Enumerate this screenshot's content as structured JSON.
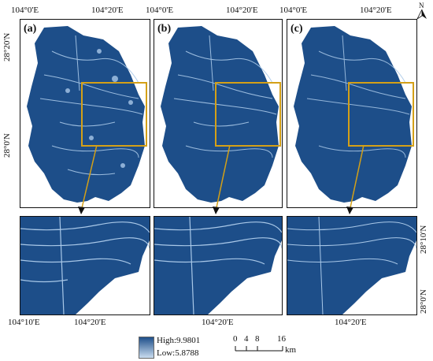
{
  "top_axis": {
    "labels": [
      "104°0'E",
      "104°20'E",
      "104°0'E",
      "104°20'E",
      "104°0'E",
      "104°20'E"
    ]
  },
  "left_axis": {
    "top_labels": [
      "28°20'N",
      "28°0'N"
    ]
  },
  "bottom_row": {
    "right_labels": [
      "28°10'N",
      "28°0'N"
    ],
    "bottom_labels": [
      "104°10'E",
      "104°20'E",
      "104°20'E",
      "104°20'E"
    ]
  },
  "panels": [
    {
      "label": "(a)"
    },
    {
      "label": "(b)"
    },
    {
      "label": "(c)"
    }
  ],
  "north_arrow": {
    "label": "N"
  },
  "legend": {
    "high": "High:9.9801",
    "low": "Low:5.8788",
    "colors": {
      "high": "#1f4f8a",
      "low": "#c9dcef"
    }
  },
  "scale_bar": {
    "ticks": [
      "0",
      "4",
      "8",
      "16"
    ],
    "unit": "km"
  },
  "colors": {
    "map_fill": "#1d4e89",
    "highlight": "#a9c8e8",
    "inset_box": "#d4a017"
  }
}
